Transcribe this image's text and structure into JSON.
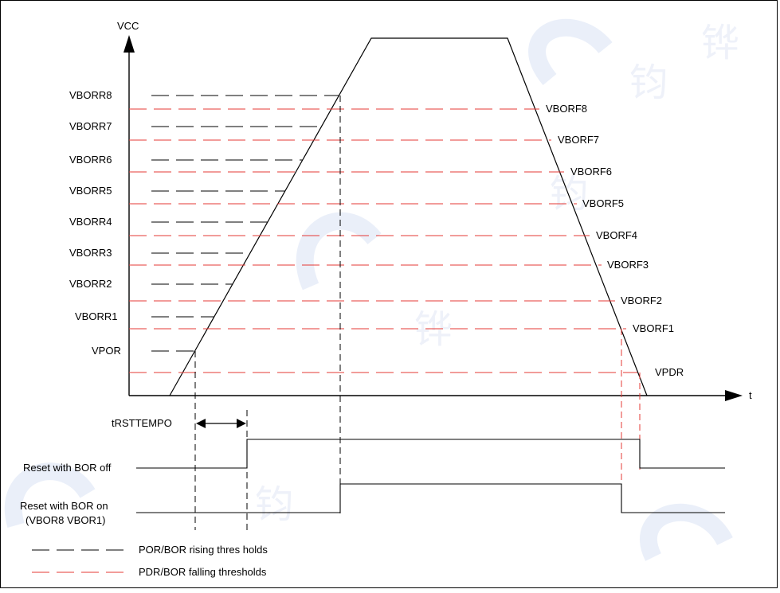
{
  "labels": {
    "vcc": "VCC",
    "t": "t",
    "trst": "tRSTTEMPO",
    "reset_bor_off": "Reset with BOR off",
    "reset_bor_on_1": "Reset with BOR on",
    "reset_bor_on_2": "(VBOR8 VBOR1)"
  },
  "rising_thresholds": [
    "VBORR8",
    "VBORR7",
    "VBORR6",
    "VBORR5",
    "VBORR4",
    "VBORR3",
    "VBORR2",
    "VBORR1",
    "VPOR"
  ],
  "falling_thresholds": [
    "VBORF8",
    "VBORF7",
    "VBORF6",
    "VBORF5",
    "VBORF4",
    "VBORF3",
    "VBORF2",
    "VBORF1",
    "VPDR"
  ],
  "legend": {
    "rising": "POR/BOR rising thres holds",
    "falling": "PDR/BOR falling thresholds"
  },
  "colors": {
    "rising_line": "#000000",
    "falling_line": "#e53935",
    "axis": "#000000",
    "watermark": "#e6ebf7"
  },
  "watermark_text": "JC 钧 铧 钧 铧"
}
